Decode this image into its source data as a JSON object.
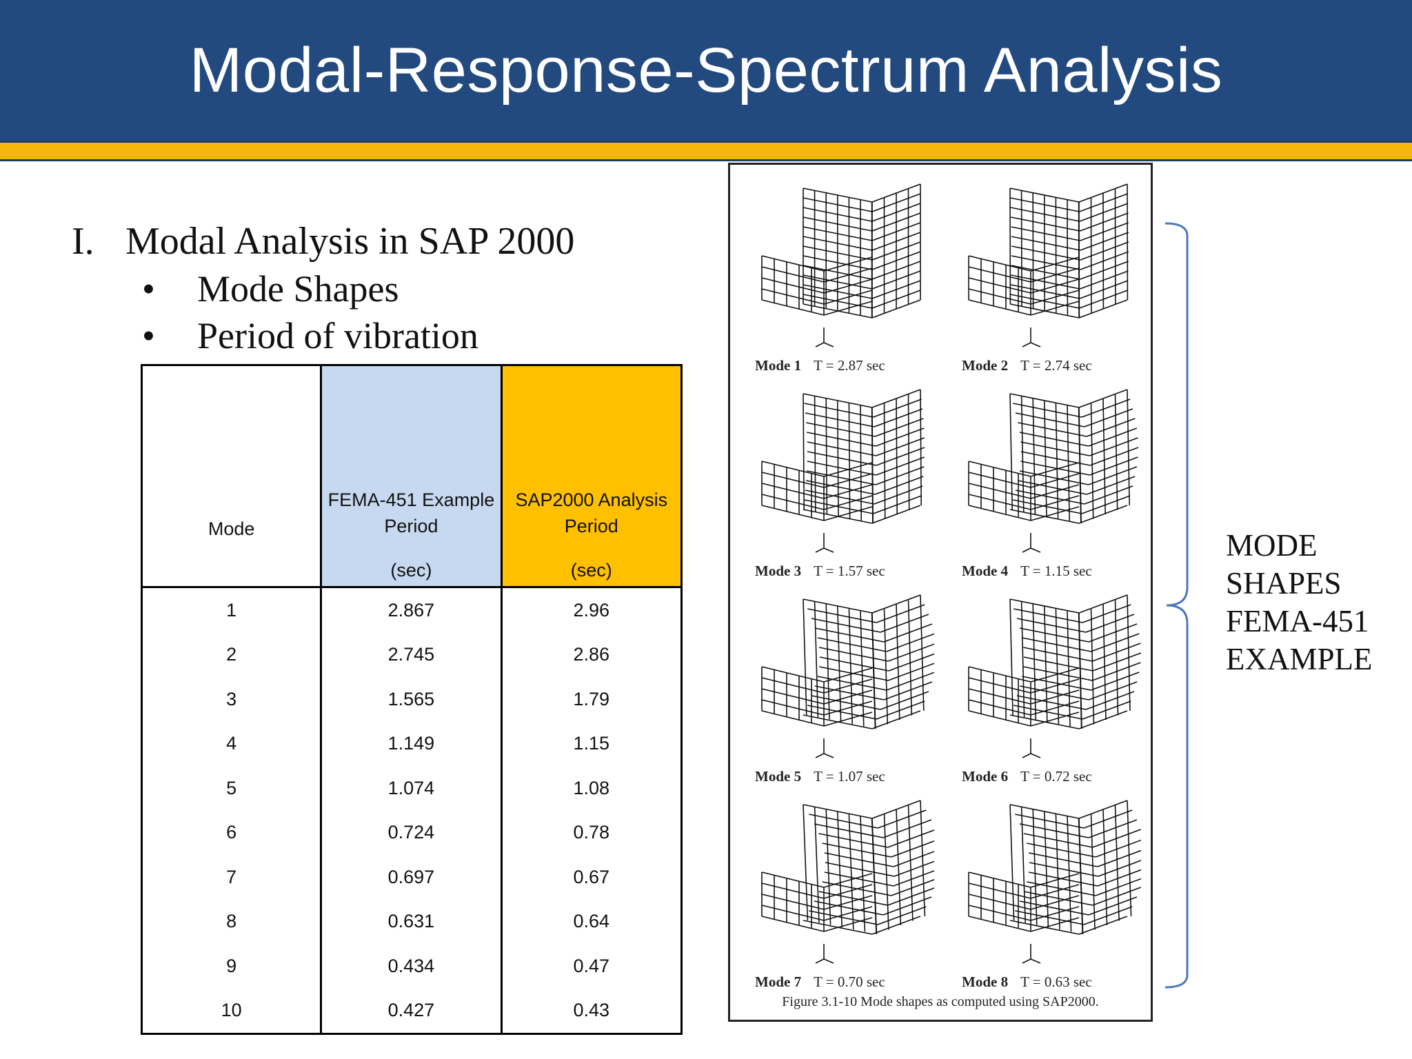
{
  "slide": {
    "title": "Modal-Response-Spectrum Analysis"
  },
  "outline": {
    "number": "I.",
    "heading": "Modal Analysis in SAP 2000",
    "bullet_symbol": "•",
    "bullets": [
      "Mode Shapes",
      "Period of vibration"
    ]
  },
  "table": {
    "headers": {
      "mode": "Mode",
      "fema_line1": "FEMA-451 Example",
      "fema_line2": "Period",
      "fema_unit": "(sec)",
      "sap_line1": "SAP2000 Analysis",
      "sap_line2": "Period",
      "sap_unit": "(sec)"
    },
    "rows": [
      {
        "mode": "1",
        "fema": "2.867",
        "sap": "2.96"
      },
      {
        "mode": "2",
        "fema": "2.745",
        "sap": "2.86"
      },
      {
        "mode": "3",
        "fema": "1.565",
        "sap": "1.79"
      },
      {
        "mode": "4",
        "fema": "1.149",
        "sap": "1.15"
      },
      {
        "mode": "5",
        "fema": "1.074",
        "sap": "1.08"
      },
      {
        "mode": "6",
        "fema": "0.724",
        "sap": "0.78"
      },
      {
        "mode": "7",
        "fema": "0.697",
        "sap": "0.67"
      },
      {
        "mode": "8",
        "fema": "0.631",
        "sap": "0.64"
      },
      {
        "mode": "9",
        "fema": "0.434",
        "sap": "0.47"
      },
      {
        "mode": "10",
        "fema": "0.427",
        "sap": "0.43"
      }
    ]
  },
  "figure": {
    "caption": "Figure 3.1-10  Mode shapes as computed using SAP2000.",
    "modes": [
      {
        "label": "Mode 1",
        "period": "T = 2.87 sec"
      },
      {
        "label": "Mode 2",
        "period": "T = 2.74 sec"
      },
      {
        "label": "Mode 3",
        "period": "T = 1.57 sec"
      },
      {
        "label": "Mode 4",
        "period": "T = 1.15 sec"
      },
      {
        "label": "Mode 5",
        "period": "T = 1.07 sec"
      },
      {
        "label": "Mode 6",
        "period": "T = 0.72 sec"
      },
      {
        "label": "Mode 7",
        "period": "T = 0.70 sec"
      },
      {
        "label": "Mode 8",
        "period": "T = 0.63 sec"
      }
    ]
  },
  "side_label": {
    "lines": [
      "MODE",
      "SHAPES",
      "FEMA-451",
      "EXAMPLE"
    ]
  },
  "colors": {
    "title_bar": "#224a7f",
    "stripe": "#f6b70d",
    "fema_header": "#c6d9f0",
    "sap_header": "#ffc000",
    "brace": "#4a7ab8"
  }
}
